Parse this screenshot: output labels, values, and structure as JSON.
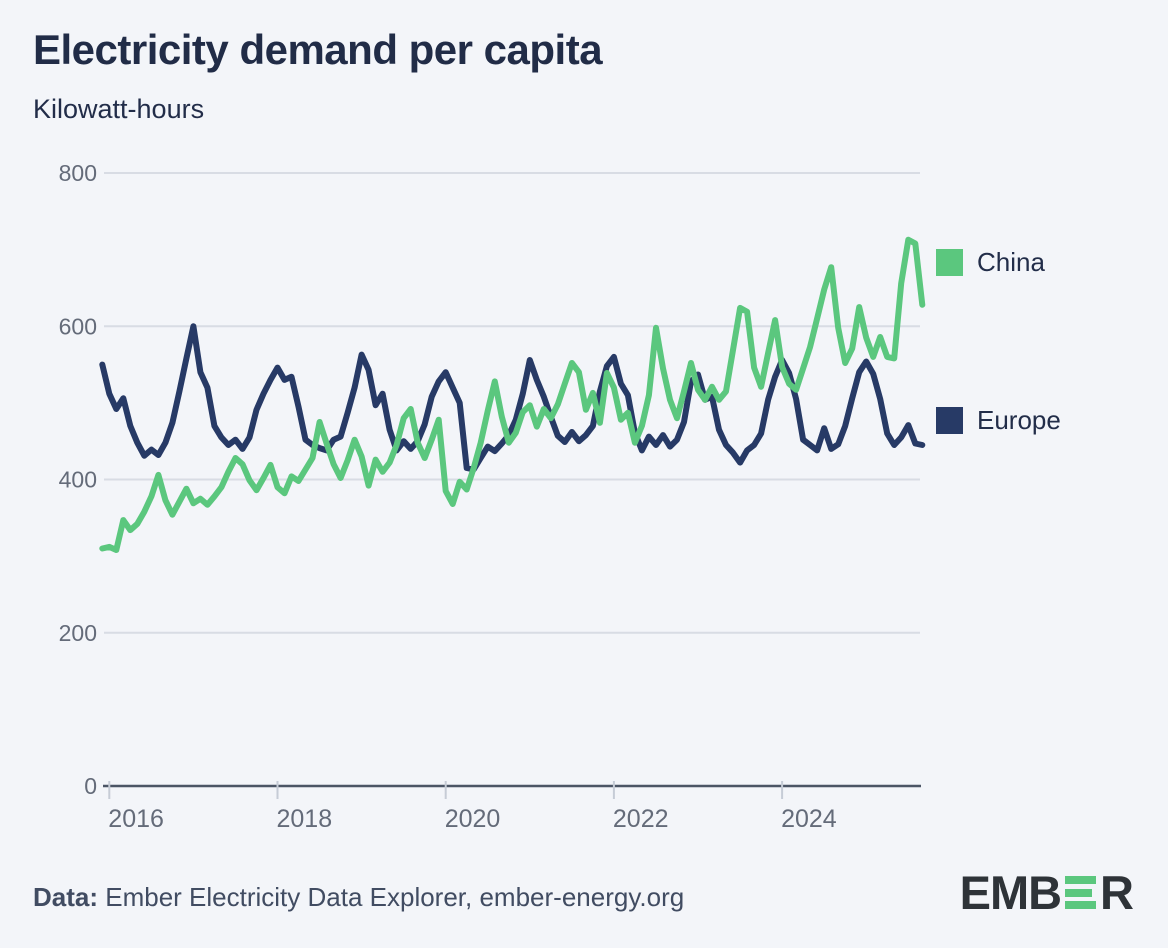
{
  "header": {
    "title": "Electricity demand per capita",
    "subtitle": "Kilowatt-hours"
  },
  "chart_data": {
    "type": "line",
    "title": "Electricity demand per capita",
    "ylabel": "Kilowatt-hours",
    "xlabel": "",
    "x_start": "2015-12",
    "x_end": "2025-09",
    "x_freq": "monthly",
    "x_tick_years": [
      2016,
      2018,
      2020,
      2022,
      2024
    ],
    "y_ticks": [
      0,
      200,
      400,
      600,
      800
    ],
    "ylim": [
      0,
      800
    ],
    "grid": "horizontal",
    "legend_position": "right",
    "background_color": "#f3f5f9",
    "series": [
      {
        "name": "China",
        "color": "#5bc77e",
        "values": [
          310,
          312,
          308,
          347,
          334,
          342,
          358,
          378,
          406,
          373,
          354,
          371,
          388,
          369,
          375,
          367,
          378,
          390,
          410,
          428,
          420,
          399,
          386,
          402,
          419,
          390,
          382,
          404,
          398,
          413,
          428,
          475,
          447,
          420,
          402,
          425,
          452,
          430,
          392,
          426,
          410,
          422,
          445,
          480,
          492,
          448,
          428,
          452,
          478,
          385,
          368,
          397,
          387,
          415,
          448,
          490,
          528,
          482,
          448,
          461,
          488,
          497,
          469,
          492,
          480,
          498,
          525,
          552,
          540,
          491,
          513,
          474,
          539,
          520,
          478,
          487,
          448,
          470,
          510,
          598,
          545,
          504,
          480,
          515,
          552,
          517,
          504,
          521,
          504,
          515,
          569,
          624,
          619,
          546,
          521,
          565,
          608,
          547,
          525,
          517,
          545,
          573,
          610,
          648,
          677,
          598,
          552,
          571,
          625,
          585,
          560,
          586,
          560,
          558,
          656,
          713,
          708,
          628
        ]
      },
      {
        "name": "Europe",
        "color": "#273a66",
        "values": [
          550,
          512,
          492,
          506,
          470,
          448,
          431,
          439,
          432,
          448,
          474,
          515,
          558,
          600,
          540,
          520,
          470,
          455,
          445,
          452,
          440,
          455,
          491,
          512,
          530,
          546,
          530,
          534,
          495,
          452,
          445,
          441,
          438,
          452,
          456,
          487,
          520,
          563,
          543,
          497,
          512,
          465,
          438,
          450,
          440,
          450,
          472,
          508,
          528,
          540,
          520,
          500,
          415,
          413,
          428,
          443,
          437,
          447,
          458,
          478,
          512,
          556,
          530,
          508,
          482,
          457,
          449,
          462,
          450,
          458,
          470,
          515,
          548,
          560,
          525,
          510,
          461,
          438,
          456,
          445,
          458,
          443,
          452,
          475,
          528,
          537,
          504,
          508,
          465,
          445,
          435,
          422,
          438,
          445,
          460,
          504,
          534,
          556,
          539,
          505,
          452,
          445,
          438,
          467,
          440,
          446,
          470,
          506,
          540,
          554,
          538,
          505,
          460,
          445,
          455,
          471,
          447,
          445
        ]
      }
    ]
  },
  "footer": {
    "source_label": "Data:",
    "source_text": " Ember Electricity Data Explorer, ember-energy.org"
  },
  "logo": {
    "left": "EMB",
    "right": "R",
    "accent_color": "#5bc77e"
  }
}
